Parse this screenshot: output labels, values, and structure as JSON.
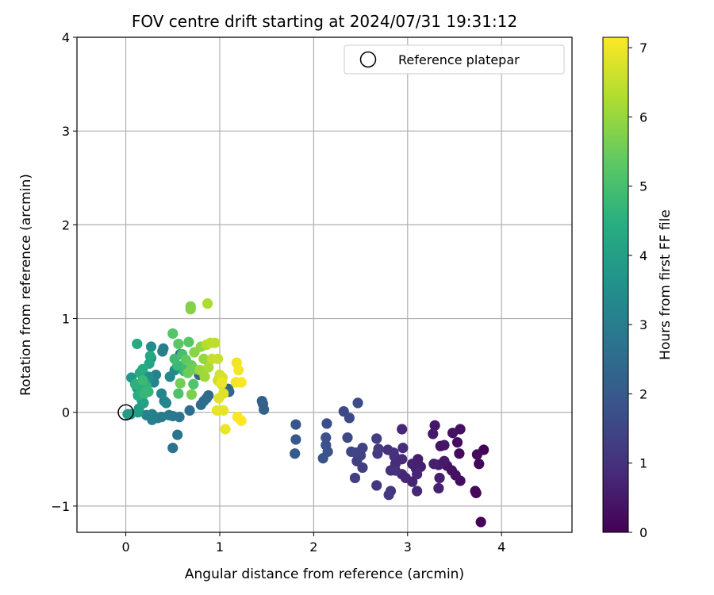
{
  "chart_data": {
    "type": "scatter",
    "title": "FOV centre drift starting at 2024/07/31 19:31:12",
    "xlabel": "Angular distance from reference (arcmin)",
    "ylabel": "Rotation from reference (arcmin)",
    "xlim": [
      -0.52,
      4.75
    ],
    "ylim": [
      -1.28,
      4.0
    ],
    "xticks": [
      0,
      1,
      2,
      3,
      4
    ],
    "yticks": [
      -1,
      0,
      1,
      2,
      3,
      4
    ],
    "xtick_labels": [
      "0",
      "1",
      "2",
      "3",
      "4"
    ],
    "ytick_labels": [
      "−1",
      "0",
      "1",
      "2",
      "3",
      "4"
    ],
    "grid": true,
    "colormap": "viridis",
    "colorbar": {
      "label": "Hours from first FF file",
      "range": [
        0,
        7.15
      ],
      "ticks": [
        0,
        1,
        2,
        3,
        4,
        5,
        6,
        7
      ],
      "tick_labels": [
        "0",
        "1",
        "2",
        "3",
        "4",
        "5",
        "6",
        "7"
      ]
    },
    "legend": {
      "position": "top-right",
      "entries": [
        "Reference platepar"
      ]
    },
    "reference_point": {
      "x": 0,
      "y": 0
    },
    "points": [
      {
        "x": 3.78,
        "y": -1.17,
        "c": 0.05
      },
      {
        "x": 3.73,
        "y": -0.86,
        "c": 0.1
      },
      {
        "x": 3.72,
        "y": -0.84,
        "c": 0.15
      },
      {
        "x": 3.76,
        "y": -0.55,
        "c": 0.1
      },
      {
        "x": 3.81,
        "y": -0.4,
        "c": 0.05
      },
      {
        "x": 3.74,
        "y": -0.45,
        "c": 0.2
      },
      {
        "x": 3.56,
        "y": -0.73,
        "c": 0.25
      },
      {
        "x": 3.51,
        "y": -0.67,
        "c": 0.3
      },
      {
        "x": 3.47,
        "y": -0.62,
        "c": 0.35
      },
      {
        "x": 3.42,
        "y": -0.57,
        "c": 0.4
      },
      {
        "x": 3.55,
        "y": -0.44,
        "c": 0.2
      },
      {
        "x": 3.53,
        "y": -0.32,
        "c": 0.25
      },
      {
        "x": 3.56,
        "y": -0.18,
        "c": 0.3
      },
      {
        "x": 3.48,
        "y": -0.22,
        "c": 0.35
      },
      {
        "x": 3.35,
        "y": -0.36,
        "c": 0.4
      },
      {
        "x": 3.29,
        "y": -0.14,
        "c": 0.45
      },
      {
        "x": 3.27,
        "y": -0.23,
        "c": 0.5
      },
      {
        "x": 3.39,
        "y": -0.35,
        "c": 0.45
      },
      {
        "x": 3.33,
        "y": -0.56,
        "c": 0.55
      },
      {
        "x": 3.28,
        "y": -0.55,
        "c": 0.6
      },
      {
        "x": 3.39,
        "y": -0.52,
        "c": 0.5
      },
      {
        "x": 3.34,
        "y": -0.7,
        "c": 0.6
      },
      {
        "x": 3.33,
        "y": -0.81,
        "c": 0.65
      },
      {
        "x": 3.14,
        "y": -0.58,
        "c": 0.6
      },
      {
        "x": 3.11,
        "y": -0.5,
        "c": 0.55
      },
      {
        "x": 3.09,
        "y": -0.6,
        "c": 0.7
      },
      {
        "x": 3.05,
        "y": -0.55,
        "c": 0.65
      },
      {
        "x": 3.1,
        "y": -0.66,
        "c": 0.75
      },
      {
        "x": 3.05,
        "y": -0.74,
        "c": 0.7
      },
      {
        "x": 3.1,
        "y": -0.84,
        "c": 0.8
      },
      {
        "x": 2.98,
        "y": -0.7,
        "c": 0.75
      },
      {
        "x": 2.94,
        "y": -0.66,
        "c": 0.8
      },
      {
        "x": 2.94,
        "y": -0.5,
        "c": 0.85
      },
      {
        "x": 2.95,
        "y": -0.38,
        "c": 0.9
      },
      {
        "x": 2.94,
        "y": -0.18,
        "c": 0.8
      },
      {
        "x": 2.87,
        "y": -0.55,
        "c": 0.9
      },
      {
        "x": 2.86,
        "y": -0.47,
        "c": 0.95
      },
      {
        "x": 2.85,
        "y": -0.43,
        "c": 1.0
      },
      {
        "x": 2.79,
        "y": -0.4,
        "c": 1.0
      },
      {
        "x": 2.82,
        "y": -0.62,
        "c": 0.95
      },
      {
        "x": 2.87,
        "y": -0.62,
        "c": 1.05
      },
      {
        "x": 2.82,
        "y": -0.84,
        "c": 1.1
      },
      {
        "x": 2.8,
        "y": -0.88,
        "c": 1.15
      },
      {
        "x": 2.67,
        "y": -0.78,
        "c": 1.1
      },
      {
        "x": 2.68,
        "y": -0.44,
        "c": 1.2
      },
      {
        "x": 2.69,
        "y": -0.39,
        "c": 1.2
      },
      {
        "x": 2.67,
        "y": -0.28,
        "c": 1.25
      },
      {
        "x": 2.52,
        "y": -0.59,
        "c": 1.3
      },
      {
        "x": 2.46,
        "y": -0.52,
        "c": 1.3
      },
      {
        "x": 2.44,
        "y": -0.7,
        "c": 1.35
      },
      {
        "x": 2.52,
        "y": -0.38,
        "c": 1.4
      },
      {
        "x": 2.5,
        "y": -0.46,
        "c": 1.4
      },
      {
        "x": 2.45,
        "y": -0.43,
        "c": 1.45
      },
      {
        "x": 2.4,
        "y": -0.42,
        "c": 1.5
      },
      {
        "x": 2.36,
        "y": -0.27,
        "c": 1.55
      },
      {
        "x": 2.38,
        "y": -0.06,
        "c": 1.6
      },
      {
        "x": 2.32,
        "y": 0.01,
        "c": 1.6
      },
      {
        "x": 2.47,
        "y": 0.1,
        "c": 1.65
      },
      {
        "x": 2.14,
        "y": -0.12,
        "c": 1.7
      },
      {
        "x": 2.13,
        "y": -0.27,
        "c": 1.75
      },
      {
        "x": 2.13,
        "y": -0.35,
        "c": 1.8
      },
      {
        "x": 2.15,
        "y": -0.42,
        "c": 1.8
      },
      {
        "x": 2.1,
        "y": -0.49,
        "c": 1.85
      },
      {
        "x": 1.81,
        "y": -0.13,
        "c": 1.9
      },
      {
        "x": 1.81,
        "y": -0.29,
        "c": 1.95
      },
      {
        "x": 1.8,
        "y": -0.44,
        "c": 2.0
      },
      {
        "x": 1.45,
        "y": 0.12,
        "c": 2.1
      },
      {
        "x": 1.46,
        "y": 0.09,
        "c": 2.15
      },
      {
        "x": 1.47,
        "y": 0.03,
        "c": 2.2
      },
      {
        "x": 1.09,
        "y": 0.25,
        "c": 2.3
      },
      {
        "x": 1.1,
        "y": 0.22,
        "c": 2.35
      },
      {
        "x": 0.88,
        "y": 0.18,
        "c": 2.4
      },
      {
        "x": 0.86,
        "y": 0.15,
        "c": 2.45
      },
      {
        "x": 0.83,
        "y": 0.12,
        "c": 2.5
      },
      {
        "x": 0.8,
        "y": 0.08,
        "c": 2.55
      },
      {
        "x": 0.58,
        "y": 0.62,
        "c": 2.4
      },
      {
        "x": 0.78,
        "y": 0.4,
        "c": 2.35
      },
      {
        "x": 0.68,
        "y": 0.02,
        "c": 2.6
      },
      {
        "x": 0.5,
        "y": -0.38,
        "c": 2.7
      },
      {
        "x": 0.55,
        "y": -0.24,
        "c": 2.75
      },
      {
        "x": 0.57,
        "y": -0.05,
        "c": 2.8
      },
      {
        "x": 0.5,
        "y": -0.04,
        "c": 2.85
      },
      {
        "x": 0.46,
        "y": -0.03,
        "c": 2.9
      },
      {
        "x": 0.41,
        "y": 0.12,
        "c": 2.9
      },
      {
        "x": 0.38,
        "y": -0.05,
        "c": 2.95
      },
      {
        "x": 0.34,
        "y": -0.06,
        "c": 3.0
      },
      {
        "x": 0.28,
        "y": -0.02,
        "c": 3.05
      },
      {
        "x": 0.28,
        "y": -0.08,
        "c": 3.1
      },
      {
        "x": 0.22,
        "y": -0.03,
        "c": 3.15
      },
      {
        "x": 0.4,
        "y": 0.68,
        "c": 3.0
      },
      {
        "x": 0.39,
        "y": 0.65,
        "c": 3.05
      },
      {
        "x": 0.32,
        "y": 0.4,
        "c": 3.1
      },
      {
        "x": 0.3,
        "y": 0.32,
        "c": 3.2
      },
      {
        "x": 0.38,
        "y": 0.2,
        "c": 3.25
      },
      {
        "x": 0.43,
        "y": 0.1,
        "c": 3.3
      },
      {
        "x": 0.47,
        "y": 0.38,
        "c": 3.35
      },
      {
        "x": 0.52,
        "y": 0.45,
        "c": 3.4
      },
      {
        "x": 0.27,
        "y": 0.58,
        "c": 3.45
      },
      {
        "x": 0.27,
        "y": 0.7,
        "c": 3.5
      },
      {
        "x": 0.24,
        "y": 0.38,
        "c": 3.55
      },
      {
        "x": 0.2,
        "y": 0.35,
        "c": 3.6
      },
      {
        "x": 0.15,
        "y": 0.3,
        "c": 3.65
      },
      {
        "x": 0.12,
        "y": 0.26,
        "c": 3.7
      },
      {
        "x": 0.06,
        "y": 0.37,
        "c": 3.75
      },
      {
        "x": 0.05,
        "y": -0.02,
        "c": 3.8
      },
      {
        "x": 0.02,
        "y": -0.02,
        "c": 3.85
      },
      {
        "x": 0.13,
        "y": 0.0,
        "c": 3.9
      },
      {
        "x": 0.14,
        "y": 0.04,
        "c": 3.95
      },
      {
        "x": 0.17,
        "y": 0.13,
        "c": 4.0
      },
      {
        "x": 0.19,
        "y": 0.1,
        "c": 4.05
      },
      {
        "x": 0.22,
        "y": 0.27,
        "c": 4.1
      },
      {
        "x": 0.25,
        "y": 0.52,
        "c": 4.2
      },
      {
        "x": 0.26,
        "y": 0.6,
        "c": 4.25
      },
      {
        "x": 0.12,
        "y": 0.73,
        "c": 4.3
      },
      {
        "x": 0.15,
        "y": 0.42,
        "c": 4.35
      },
      {
        "x": 0.18,
        "y": 0.46,
        "c": 4.4
      },
      {
        "x": 0.13,
        "y": 0.18,
        "c": 4.45
      },
      {
        "x": 0.16,
        "y": 0.22,
        "c": 4.5
      },
      {
        "x": 0.1,
        "y": 0.3,
        "c": 4.55
      },
      {
        "x": 0.22,
        "y": 0.28,
        "c": 4.6
      },
      {
        "x": 0.24,
        "y": 0.22,
        "c": 4.7
      },
      {
        "x": 0.2,
        "y": 0.2,
        "c": 4.75
      },
      {
        "x": 0.18,
        "y": 0.34,
        "c": 4.8
      },
      {
        "x": 0.63,
        "y": 0.52,
        "c": 4.6
      },
      {
        "x": 0.62,
        "y": 0.44,
        "c": 4.7
      },
      {
        "x": 0.55,
        "y": 0.5,
        "c": 4.8
      },
      {
        "x": 0.52,
        "y": 0.57,
        "c": 4.85
      },
      {
        "x": 0.65,
        "y": 0.48,
        "c": 4.9
      },
      {
        "x": 0.6,
        "y": 0.62,
        "c": 5.0
      },
      {
        "x": 0.56,
        "y": 0.2,
        "c": 5.1
      },
      {
        "x": 0.72,
        "y": 0.3,
        "c": 5.15
      },
      {
        "x": 0.5,
        "y": 0.84,
        "c": 5.2
      },
      {
        "x": 0.67,
        "y": 0.75,
        "c": 5.25
      },
      {
        "x": 0.56,
        "y": 0.73,
        "c": 5.3
      },
      {
        "x": 0.64,
        "y": 0.56,
        "c": 5.35
      },
      {
        "x": 0.7,
        "y": 0.5,
        "c": 5.45
      },
      {
        "x": 0.66,
        "y": 0.42,
        "c": 5.5
      },
      {
        "x": 0.73,
        "y": 0.46,
        "c": 5.55
      },
      {
        "x": 0.58,
        "y": 0.31,
        "c": 5.6
      },
      {
        "x": 0.7,
        "y": 0.19,
        "c": 5.7
      },
      {
        "x": 0.69,
        "y": 1.13,
        "c": 5.75
      },
      {
        "x": 0.69,
        "y": 1.1,
        "c": 5.8
      },
      {
        "x": 0.73,
        "y": 0.64,
        "c": 5.85
      },
      {
        "x": 0.8,
        "y": 0.7,
        "c": 5.9
      },
      {
        "x": 0.83,
        "y": 0.57,
        "c": 6.0
      },
      {
        "x": 0.79,
        "y": 0.45,
        "c": 6.05
      },
      {
        "x": 0.84,
        "y": 0.38,
        "c": 6.1
      },
      {
        "x": 0.88,
        "y": 0.48,
        "c": 6.2
      },
      {
        "x": 0.87,
        "y": 1.16,
        "c": 6.25
      },
      {
        "x": 0.86,
        "y": 0.72,
        "c": 6.3
      },
      {
        "x": 0.9,
        "y": 0.74,
        "c": 6.4
      },
      {
        "x": 0.95,
        "y": 0.74,
        "c": 6.45
      },
      {
        "x": 0.92,
        "y": 0.57,
        "c": 6.5
      },
      {
        "x": 0.98,
        "y": 0.57,
        "c": 6.55
      },
      {
        "x": 0.98,
        "y": 0.34,
        "c": 6.6
      },
      {
        "x": 1.0,
        "y": 0.4,
        "c": 6.65
      },
      {
        "x": 1.02,
        "y": 0.3,
        "c": 6.7
      },
      {
        "x": 1.03,
        "y": 0.37,
        "c": 6.75
      },
      {
        "x": 1.04,
        "y": 0.2,
        "c": 6.8
      },
      {
        "x": 0.99,
        "y": 0.15,
        "c": 6.85
      },
      {
        "x": 1.04,
        "y": 0.02,
        "c": 6.9
      },
      {
        "x": 0.97,
        "y": 0.02,
        "c": 6.9
      },
      {
        "x": 1.06,
        "y": -0.18,
        "c": 6.95
      },
      {
        "x": 1.18,
        "y": 0.53,
        "c": 7.0
      },
      {
        "x": 1.2,
        "y": 0.45,
        "c": 7.05
      },
      {
        "x": 1.17,
        "y": 0.32,
        "c": 7.05
      },
      {
        "x": 1.23,
        "y": 0.32,
        "c": 7.1
      },
      {
        "x": 1.19,
        "y": -0.05,
        "c": 7.1
      },
      {
        "x": 1.23,
        "y": -0.09,
        "c": 7.15
      },
      {
        "x": 1.02,
        "y": 0.32,
        "c": 6.95
      }
    ]
  }
}
